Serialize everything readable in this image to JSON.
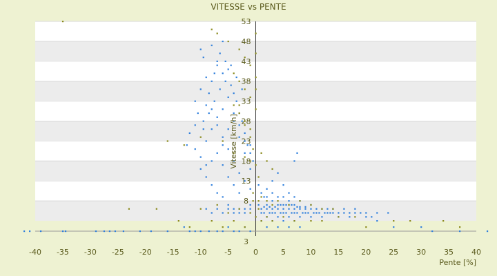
{
  "chart_data": {
    "type": "scatter",
    "title": "VITESSE vs PENTE",
    "xlabel": "Pente [%]",
    "ylabel": "Vitesse [km/h]",
    "xlim": [
      -40,
      40
    ],
    "ylim": [
      3,
      53
    ],
    "x_ticks": [
      -40,
      -35,
      -30,
      -25,
      -20,
      -15,
      -10,
      -5,
      0,
      5,
      10,
      15,
      20,
      25,
      30,
      35,
      40
    ],
    "y_ticks": [
      3,
      8,
      13,
      18,
      23,
      28,
      33,
      38,
      43,
      48,
      53
    ],
    "grid": "horizontal bands",
    "legend": "none",
    "colors": {
      "blue": "#2f7fdc",
      "olive": "#8a8a1c",
      "band": "#ececec"
    },
    "series": [
      {
        "color": "blue",
        "points": [
          [
            -42,
            1
          ],
          [
            -41,
            1
          ],
          [
            -39,
            1
          ],
          [
            -35,
            1
          ],
          [
            -34.5,
            1
          ],
          [
            -29,
            1
          ],
          [
            -27.5,
            1
          ],
          [
            -26.5,
            1
          ],
          [
            -25.5,
            1
          ],
          [
            -24,
            1
          ],
          [
            -21,
            1
          ],
          [
            -19,
            1
          ],
          [
            -16,
            1
          ],
          [
            -13,
            2
          ],
          [
            -12,
            1
          ],
          [
            -11,
            1
          ],
          [
            -10,
            1
          ],
          [
            -8.5,
            1
          ],
          [
            -7,
            1
          ],
          [
            -6,
            1
          ],
          [
            -5,
            2
          ],
          [
            -4,
            1
          ],
          [
            -3,
            1
          ],
          [
            -2,
            2
          ],
          [
            -1,
            1
          ],
          [
            -12.5,
            22
          ],
          [
            -12,
            25
          ],
          [
            -11,
            27
          ],
          [
            -10.5,
            30
          ],
          [
            -9.5,
            28
          ],
          [
            -9,
            32
          ],
          [
            -8.5,
            35
          ],
          [
            -8,
            38
          ],
          [
            -7.5,
            40
          ],
          [
            -7,
            42
          ],
          [
            -6.5,
            45
          ],
          [
            -6,
            48
          ],
          [
            -5.5,
            43
          ],
          [
            -5,
            41
          ],
          [
            -4.5,
            37
          ],
          [
            -4,
            35
          ],
          [
            -3.5,
            33
          ],
          [
            -3,
            30
          ],
          [
            -2.5,
            28
          ],
          [
            -2,
            25
          ],
          [
            -1.5,
            22
          ],
          [
            -1,
            20
          ],
          [
            -0.5,
            18
          ],
          [
            -11,
            21
          ],
          [
            -10,
            19
          ],
          [
            -9,
            23
          ],
          [
            -8,
            26
          ],
          [
            -7,
            29
          ],
          [
            -6,
            31
          ],
          [
            -5,
            34
          ],
          [
            -4,
            28
          ],
          [
            -3,
            24
          ],
          [
            -2,
            20
          ],
          [
            -1,
            16
          ],
          [
            -10,
            46
          ],
          [
            -9.5,
            44
          ],
          [
            -8,
            47
          ],
          [
            -7,
            43
          ],
          [
            -6,
            40
          ],
          [
            -9,
            39
          ],
          [
            -10,
            36
          ],
          [
            -11,
            33
          ],
          [
            -8,
            31
          ],
          [
            -7,
            27
          ],
          [
            -6,
            24
          ],
          [
            -5,
            21
          ],
          [
            -4,
            18
          ],
          [
            -3,
            15
          ],
          [
            -2,
            13
          ],
          [
            -1,
            11
          ],
          [
            -6,
            17
          ],
          [
            -5,
            14
          ],
          [
            -4,
            12
          ],
          [
            -3,
            10
          ],
          [
            -8,
            12
          ],
          [
            -7,
            10
          ],
          [
            -9,
            14
          ],
          [
            -10,
            16
          ],
          [
            -6,
            9
          ],
          [
            -5,
            7
          ],
          [
            -4,
            6
          ],
          [
            -3,
            5
          ],
          [
            -2,
            6
          ],
          [
            -1,
            7
          ],
          [
            -7,
            6
          ],
          [
            -6,
            5
          ],
          [
            -5,
            6
          ],
          [
            -8,
            5
          ],
          [
            -9,
            6
          ],
          [
            -4,
            5
          ],
          [
            -3,
            6
          ],
          [
            -2,
            5
          ],
          [
            -1,
            6
          ],
          [
            -5.5,
            38
          ],
          [
            -4.5,
            42
          ],
          [
            -3.5,
            39
          ],
          [
            -2.5,
            36
          ],
          [
            -6.5,
            36
          ],
          [
            -7.5,
            33
          ],
          [
            -8.5,
            30
          ],
          [
            -9.5,
            26
          ],
          [
            -4,
            30
          ],
          [
            -3,
            27
          ],
          [
            -5,
            26
          ],
          [
            -6,
            22
          ],
          [
            -7,
            20
          ],
          [
            -8,
            18
          ],
          [
            -9,
            17
          ],
          [
            -2,
            23
          ],
          [
            -1,
            22
          ],
          [
            0.5,
            7
          ],
          [
            1,
            6
          ],
          [
            1.5,
            5
          ],
          [
            2,
            6
          ],
          [
            2.5,
            5
          ],
          [
            3,
            6
          ],
          [
            3.5,
            5
          ],
          [
            4,
            6
          ],
          [
            4.5,
            5
          ],
          [
            5,
            6
          ],
          [
            5.5,
            5
          ],
          [
            6,
            6
          ],
          [
            6.5,
            5
          ],
          [
            7,
            6
          ],
          [
            7.5,
            5
          ],
          [
            8,
            6
          ],
          [
            8.5,
            5
          ],
          [
            9,
            6
          ],
          [
            9.5,
            5
          ],
          [
            10,
            6
          ],
          [
            10.5,
            5
          ],
          [
            11,
            6
          ],
          [
            11.5,
            5
          ],
          [
            12,
            6
          ],
          [
            12.5,
            5
          ],
          [
            13,
            6
          ],
          [
            13.5,
            5
          ],
          [
            14,
            6
          ],
          [
            15,
            5
          ],
          [
            16,
            6
          ],
          [
            17,
            5
          ],
          [
            18,
            6
          ],
          [
            19,
            5
          ],
          [
            20,
            5
          ],
          [
            21,
            4
          ],
          [
            22,
            5
          ],
          [
            24,
            5
          ],
          [
            1,
            5
          ],
          [
            2,
            4
          ],
          [
            3,
            5
          ],
          [
            4,
            4
          ],
          [
            5,
            5
          ],
          [
            6,
            4
          ],
          [
            7,
            5
          ],
          [
            8,
            4
          ],
          [
            9,
            5
          ],
          [
            10,
            4
          ],
          [
            11,
            5
          ],
          [
            12,
            4
          ],
          [
            2,
            7
          ],
          [
            3,
            8
          ],
          [
            4,
            7
          ],
          [
            5,
            7
          ],
          [
            6,
            7
          ],
          [
            7,
            7
          ],
          [
            8,
            6.5
          ],
          [
            9,
            6.5
          ],
          [
            10,
            7
          ],
          [
            1.5,
            6.5
          ],
          [
            2.5,
            6.5
          ],
          [
            3.5,
            6.5
          ],
          [
            4.5,
            7
          ],
          [
            5.5,
            7
          ],
          [
            6.5,
            7
          ],
          [
            7.5,
            6.5
          ],
          [
            1,
            3
          ],
          [
            2,
            2
          ],
          [
            3,
            3
          ],
          [
            4,
            2
          ],
          [
            5,
            3
          ],
          [
            6,
            2
          ],
          [
            7,
            3
          ],
          [
            8,
            2
          ],
          [
            0.5,
            12
          ],
          [
            1,
            10
          ],
          [
            1.5,
            9
          ],
          [
            2,
            11
          ],
          [
            3,
            13
          ],
          [
            4,
            15
          ],
          [
            5,
            12
          ],
          [
            6,
            10
          ],
          [
            7,
            18
          ],
          [
            7.5,
            20
          ],
          [
            7,
            9
          ],
          [
            8,
            8
          ],
          [
            6,
            8
          ],
          [
            5,
            9
          ],
          [
            4,
            9
          ],
          [
            3,
            10
          ],
          [
            2,
            9
          ],
          [
            13,
            5
          ],
          [
            14,
            5
          ],
          [
            15,
            4
          ],
          [
            16,
            5
          ],
          [
            17,
            4
          ],
          [
            18,
            5
          ],
          [
            20,
            4
          ],
          [
            22,
            3
          ],
          [
            25,
            2
          ],
          [
            30,
            2
          ],
          [
            32,
            1
          ],
          [
            37,
            1
          ],
          [
            42,
            1
          ]
        ]
      },
      {
        "color": "olive",
        "points": [
          [
            -35,
            53
          ],
          [
            -8,
            51
          ],
          [
            -7,
            50
          ],
          [
            -5,
            48
          ],
          [
            -3,
            46
          ],
          [
            -2,
            44
          ],
          [
            -1,
            42
          ],
          [
            -4,
            40
          ],
          [
            -3,
            38
          ],
          [
            -2,
            36
          ],
          [
            -1,
            34
          ],
          [
            -4,
            32
          ],
          [
            -3,
            30
          ],
          [
            -2,
            28
          ],
          [
            -1,
            26
          ],
          [
            -16,
            23
          ],
          [
            -13,
            22
          ],
          [
            -10,
            24
          ],
          [
            -6,
            23
          ],
          [
            -4,
            20
          ],
          [
            -2,
            19
          ],
          [
            -1,
            18
          ],
          [
            0,
            17
          ],
          [
            -0.5,
            21
          ],
          [
            -1,
            24
          ],
          [
            -2,
            27
          ],
          [
            -3,
            32
          ],
          [
            0,
            31
          ],
          [
            0,
            36
          ],
          [
            0,
            39
          ],
          [
            0,
            45
          ],
          [
            0,
            50
          ],
          [
            -23,
            6
          ],
          [
            -18,
            6
          ],
          [
            -10,
            6
          ],
          [
            -7,
            7
          ],
          [
            -5,
            5
          ],
          [
            -3,
            6
          ],
          [
            -1,
            5
          ],
          [
            0,
            4
          ],
          [
            1,
            3
          ],
          [
            2,
            4
          ],
          [
            3,
            3
          ],
          [
            5,
            4
          ],
          [
            7,
            3
          ],
          [
            10,
            3
          ],
          [
            12,
            3
          ],
          [
            15,
            4
          ],
          [
            18,
            4
          ],
          [
            20,
            2
          ],
          [
            25,
            3
          ],
          [
            28,
            3
          ],
          [
            34,
            3
          ],
          [
            37,
            2
          ],
          [
            -14,
            3
          ],
          [
            -12,
            2
          ],
          [
            -8,
            3
          ],
          [
            -6,
            2
          ],
          [
            -4,
            3
          ],
          [
            -2,
            2
          ],
          [
            0.5,
            8
          ],
          [
            1,
            9
          ],
          [
            2,
            8
          ],
          [
            3,
            7
          ],
          [
            4,
            8
          ],
          [
            6,
            7
          ],
          [
            8,
            8
          ],
          [
            10,
            7
          ],
          [
            12,
            6
          ],
          [
            14,
            6
          ],
          [
            1,
            20
          ],
          [
            2,
            18
          ],
          [
            3,
            16
          ],
          [
            0.5,
            14
          ],
          [
            -0.5,
            10
          ],
          [
            0.5,
            6
          ],
          [
            -0.5,
            8
          ]
        ]
      }
    ]
  }
}
